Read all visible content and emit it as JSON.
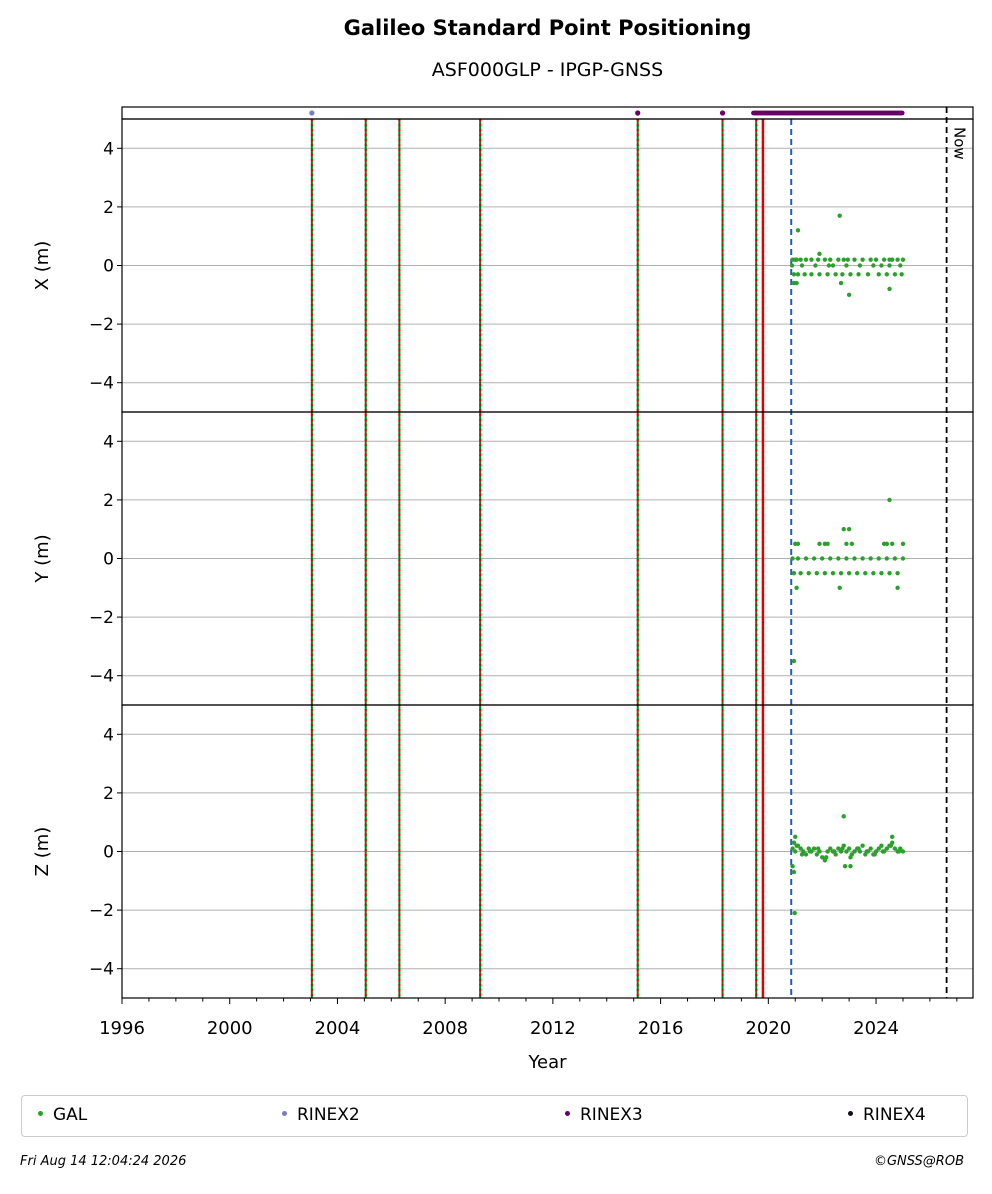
{
  "chart_data": {
    "type": "scatter",
    "title": "Galileo Standard Point Positioning",
    "subtitle": "ASF000GLP - IPGP-GNSS",
    "xlabel": "Year",
    "xlim": [
      1996,
      2027.6
    ],
    "x_ticks": [
      "1996",
      "2000",
      "2004",
      "2008",
      "2012",
      "2016",
      "2020",
      "2024"
    ],
    "panels": [
      {
        "ylabel": "X (m)",
        "ylim": [
          -5,
          5
        ],
        "y_ticks": [
          "−4",
          "−2",
          "0",
          "2",
          "4"
        ],
        "series": {
          "name": "GAL",
          "x": [
            2020.9,
            2021.0,
            2021.05,
            2021.2,
            2021.4,
            2021.6,
            2021.85,
            2022.1,
            2022.3,
            2022.6,
            2022.8,
            2022.95,
            2023.2,
            2023.5,
            2023.8,
            2024.0,
            2024.3,
            2024.5,
            2024.6,
            2024.8,
            2025.0,
            2020.95,
            2021.1,
            2021.35,
            2021.6,
            2021.9,
            2022.2,
            2022.5,
            2022.75,
            2023.05,
            2023.35,
            2023.7,
            2024.1,
            2024.4,
            2024.7,
            2024.95,
            2020.88,
            2021.25,
            2021.75,
            2022.25,
            2022.4,
            2022.9,
            2023.4,
            2023.9,
            2024.2,
            2024.5,
            2024.9,
            2020.95,
            2021.05,
            2021.1,
            2021.9,
            2022.65,
            2022.7,
            2023.0,
            2024.5
          ],
          "values": [
            0.2,
            0.2,
            0.2,
            0.2,
            0.2,
            0.2,
            0.2,
            0.2,
            0.2,
            0.2,
            0.2,
            0.2,
            0.2,
            0.2,
            0.2,
            0.2,
            0.2,
            0.2,
            0.2,
            0.2,
            0.2,
            -0.3,
            -0.3,
            -0.3,
            -0.3,
            -0.3,
            -0.3,
            -0.3,
            -0.3,
            -0.3,
            -0.3,
            -0.3,
            -0.3,
            -0.3,
            -0.3,
            -0.3,
            0.0,
            0.0,
            0.0,
            0.0,
            0.0,
            0.0,
            0.0,
            0.0,
            0.0,
            0.0,
            0.0,
            -0.6,
            -0.6,
            1.2,
            0.4,
            1.7,
            -0.6,
            -1.0,
            -0.8
          ]
        }
      },
      {
        "ylabel": "Y (m)",
        "ylim": [
          -5,
          5
        ],
        "y_ticks": [
          "−4",
          "−2",
          "0",
          "2",
          "4"
        ],
        "series": {
          "name": "GAL",
          "x": [
            2020.9,
            2021.1,
            2021.4,
            2021.7,
            2022.0,
            2022.3,
            2022.6,
            2022.9,
            2023.2,
            2023.5,
            2023.8,
            2024.1,
            2024.4,
            2024.7,
            2025.0,
            2020.95,
            2021.2,
            2021.5,
            2021.8,
            2022.1,
            2022.4,
            2022.7,
            2023.0,
            2023.3,
            2023.6,
            2023.9,
            2024.2,
            2024.5,
            2024.8,
            2021.0,
            2021.1,
            2021.9,
            2022.1,
            2022.2,
            2022.9,
            2023.1,
            2024.3,
            2024.4,
            2024.6,
            2025.0,
            2022.8,
            2023.0,
            2024.5,
            2021.05,
            2022.65,
            2024.8,
            2020.95
          ],
          "values": [
            0.0,
            0.0,
            0.0,
            0.0,
            0.0,
            0.0,
            0.0,
            0.0,
            0.0,
            0.0,
            0.0,
            0.0,
            0.0,
            0.0,
            0.0,
            -0.5,
            -0.5,
            -0.5,
            -0.5,
            -0.5,
            -0.5,
            -0.5,
            -0.5,
            -0.5,
            -0.5,
            -0.5,
            -0.5,
            -0.5,
            -0.5,
            0.5,
            0.5,
            0.5,
            0.5,
            0.5,
            0.5,
            0.5,
            0.5,
            0.5,
            0.5,
            0.5,
            1.0,
            1.0,
            2.0,
            -1.0,
            -1.0,
            -1.0,
            -3.5
          ]
        }
      },
      {
        "ylabel": "Z (m)",
        "ylim": [
          -5,
          5
        ],
        "y_ticks": [
          "−4",
          "−2",
          "0",
          "2",
          "4"
        ],
        "series": {
          "name": "GAL",
          "x": [
            2020.9,
            2021.0,
            2021.1,
            2021.2,
            2021.3,
            2021.4,
            2021.5,
            2021.6,
            2021.7,
            2021.8,
            2021.9,
            2022.0,
            2022.1,
            2022.2,
            2022.3,
            2022.4,
            2022.5,
            2022.6,
            2022.7,
            2022.8,
            2022.9,
            2023.0,
            2023.1,
            2023.2,
            2023.3,
            2023.4,
            2023.5,
            2023.6,
            2023.7,
            2023.8,
            2023.9,
            2024.0,
            2024.1,
            2024.2,
            2024.3,
            2024.4,
            2024.5,
            2024.6,
            2024.7,
            2024.8,
            2024.9,
            2025.0,
            2020.95,
            2021.05,
            2021.25,
            2021.55,
            2021.85,
            2022.15,
            2022.45,
            2022.75,
            2023.05,
            2023.35,
            2023.65,
            2023.95,
            2024.25,
            2024.55,
            2024.85,
            2020.9,
            2021.0,
            2022.8,
            2022.85,
            2023.05,
            2024.6,
            2020.95,
            2020.98
          ],
          "values": [
            0.1,
            0.0,
            0.2,
            0.1,
            0.0,
            -0.1,
            0.1,
            0.0,
            0.1,
            -0.1,
            0.0,
            -0.2,
            -0.3,
            0.0,
            0.1,
            0.0,
            -0.1,
            0.1,
            0.0,
            0.2,
            0.0,
            0.1,
            -0.1,
            0.0,
            0.1,
            0.0,
            0.2,
            -0.1,
            0.0,
            0.1,
            -0.1,
            0.0,
            0.1,
            0.2,
            0.0,
            0.1,
            0.2,
            0.3,
            0.1,
            0.0,
            0.1,
            0.0,
            0.3,
            0.2,
            -0.1,
            0.0,
            0.1,
            -0.2,
            0.0,
            0.1,
            -0.2,
            0.1,
            0.0,
            -0.1,
            0.0,
            0.2,
            0.0,
            -0.5,
            0.5,
            1.2,
            -0.5,
            -0.5,
            0.5,
            -0.7,
            -2.1
          ]
        }
      }
    ],
    "event_lines": {
      "dashed_green_red": [
        2003.05,
        2005.05,
        2006.3,
        2009.3,
        2015.15,
        2018.3,
        2019.55
      ],
      "solid_red": [
        2019.8
      ],
      "dashed_blue": [
        2020.85
      ],
      "now_dashed_black": 2026.62
    },
    "now_label": "Now",
    "rinex_strip": {
      "RINEX2": [
        2003.05
      ],
      "RINEX3_points": [
        2015.15,
        2018.3
      ],
      "RINEX3_span": [
        2019.45,
        2025.0
      ]
    },
    "legend": [
      {
        "name": "GAL",
        "color": "#2ca02c"
      },
      {
        "name": "RINEX2",
        "color": "#7b7bc0"
      },
      {
        "name": "RINEX3",
        "color": "#6a006a"
      },
      {
        "name": "RINEX4",
        "color": "#1a0a1a"
      }
    ],
    "legend_position": "bottom",
    "grid": "y"
  },
  "footer": {
    "left": "Fri Aug 14 12:04:24 2026",
    "right": "©GNSS@ROB"
  }
}
